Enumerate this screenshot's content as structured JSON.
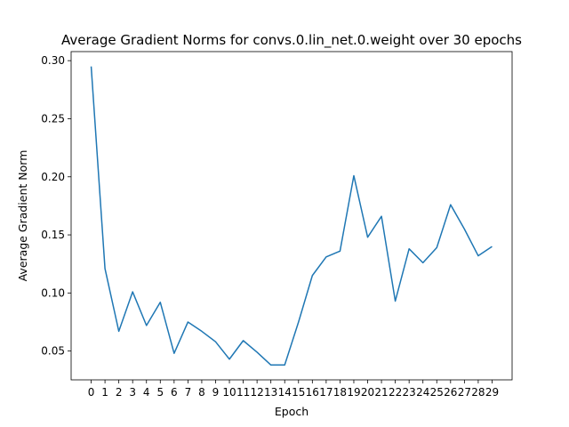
{
  "chart_data": {
    "type": "line",
    "title": "Average Gradient Norms for convs.0.lin_net.0.weight over 30 epochs",
    "xlabel": "Epoch",
    "ylabel": "Average Gradient Norm",
    "x": [
      0,
      1,
      2,
      3,
      4,
      5,
      6,
      7,
      8,
      9,
      10,
      11,
      12,
      13,
      14,
      15,
      16,
      17,
      18,
      19,
      20,
      21,
      22,
      23,
      24,
      25,
      26,
      27,
      28,
      29
    ],
    "series": [
      {
        "values": [
          0.295,
          0.121,
          0.067,
          0.101,
          0.072,
          0.092,
          0.048,
          0.075,
          0.067,
          0.058,
          0.043,
          0.059,
          0.049,
          0.038,
          0.038,
          0.075,
          0.115,
          0.131,
          0.136,
          0.201,
          0.148,
          0.166,
          0.093,
          0.138,
          0.126,
          0.139,
          0.176,
          0.155,
          0.132,
          0.14
        ]
      }
    ],
    "xticks": [
      "0",
      "1",
      "2",
      "3",
      "4",
      "5",
      "6",
      "7",
      "8",
      "9",
      "10",
      "11",
      "12",
      "13",
      "14",
      "15",
      "16",
      "17",
      "18",
      "19",
      "20",
      "21",
      "22",
      "23",
      "24",
      "25",
      "26",
      "27",
      "28",
      "29"
    ],
    "yticks": [
      "0.05",
      "0.10",
      "0.15",
      "0.20",
      "0.25",
      "0.30"
    ],
    "ytick_values": [
      0.05,
      0.1,
      0.15,
      0.2,
      0.25,
      0.3
    ],
    "xlim": [
      -1.45,
      30.45
    ],
    "ylim": [
      0.0252,
      0.3078
    ],
    "grid": false,
    "colors": {
      "line": "#1f77b4",
      "axes": "#000000",
      "background": "#ffffff"
    }
  }
}
